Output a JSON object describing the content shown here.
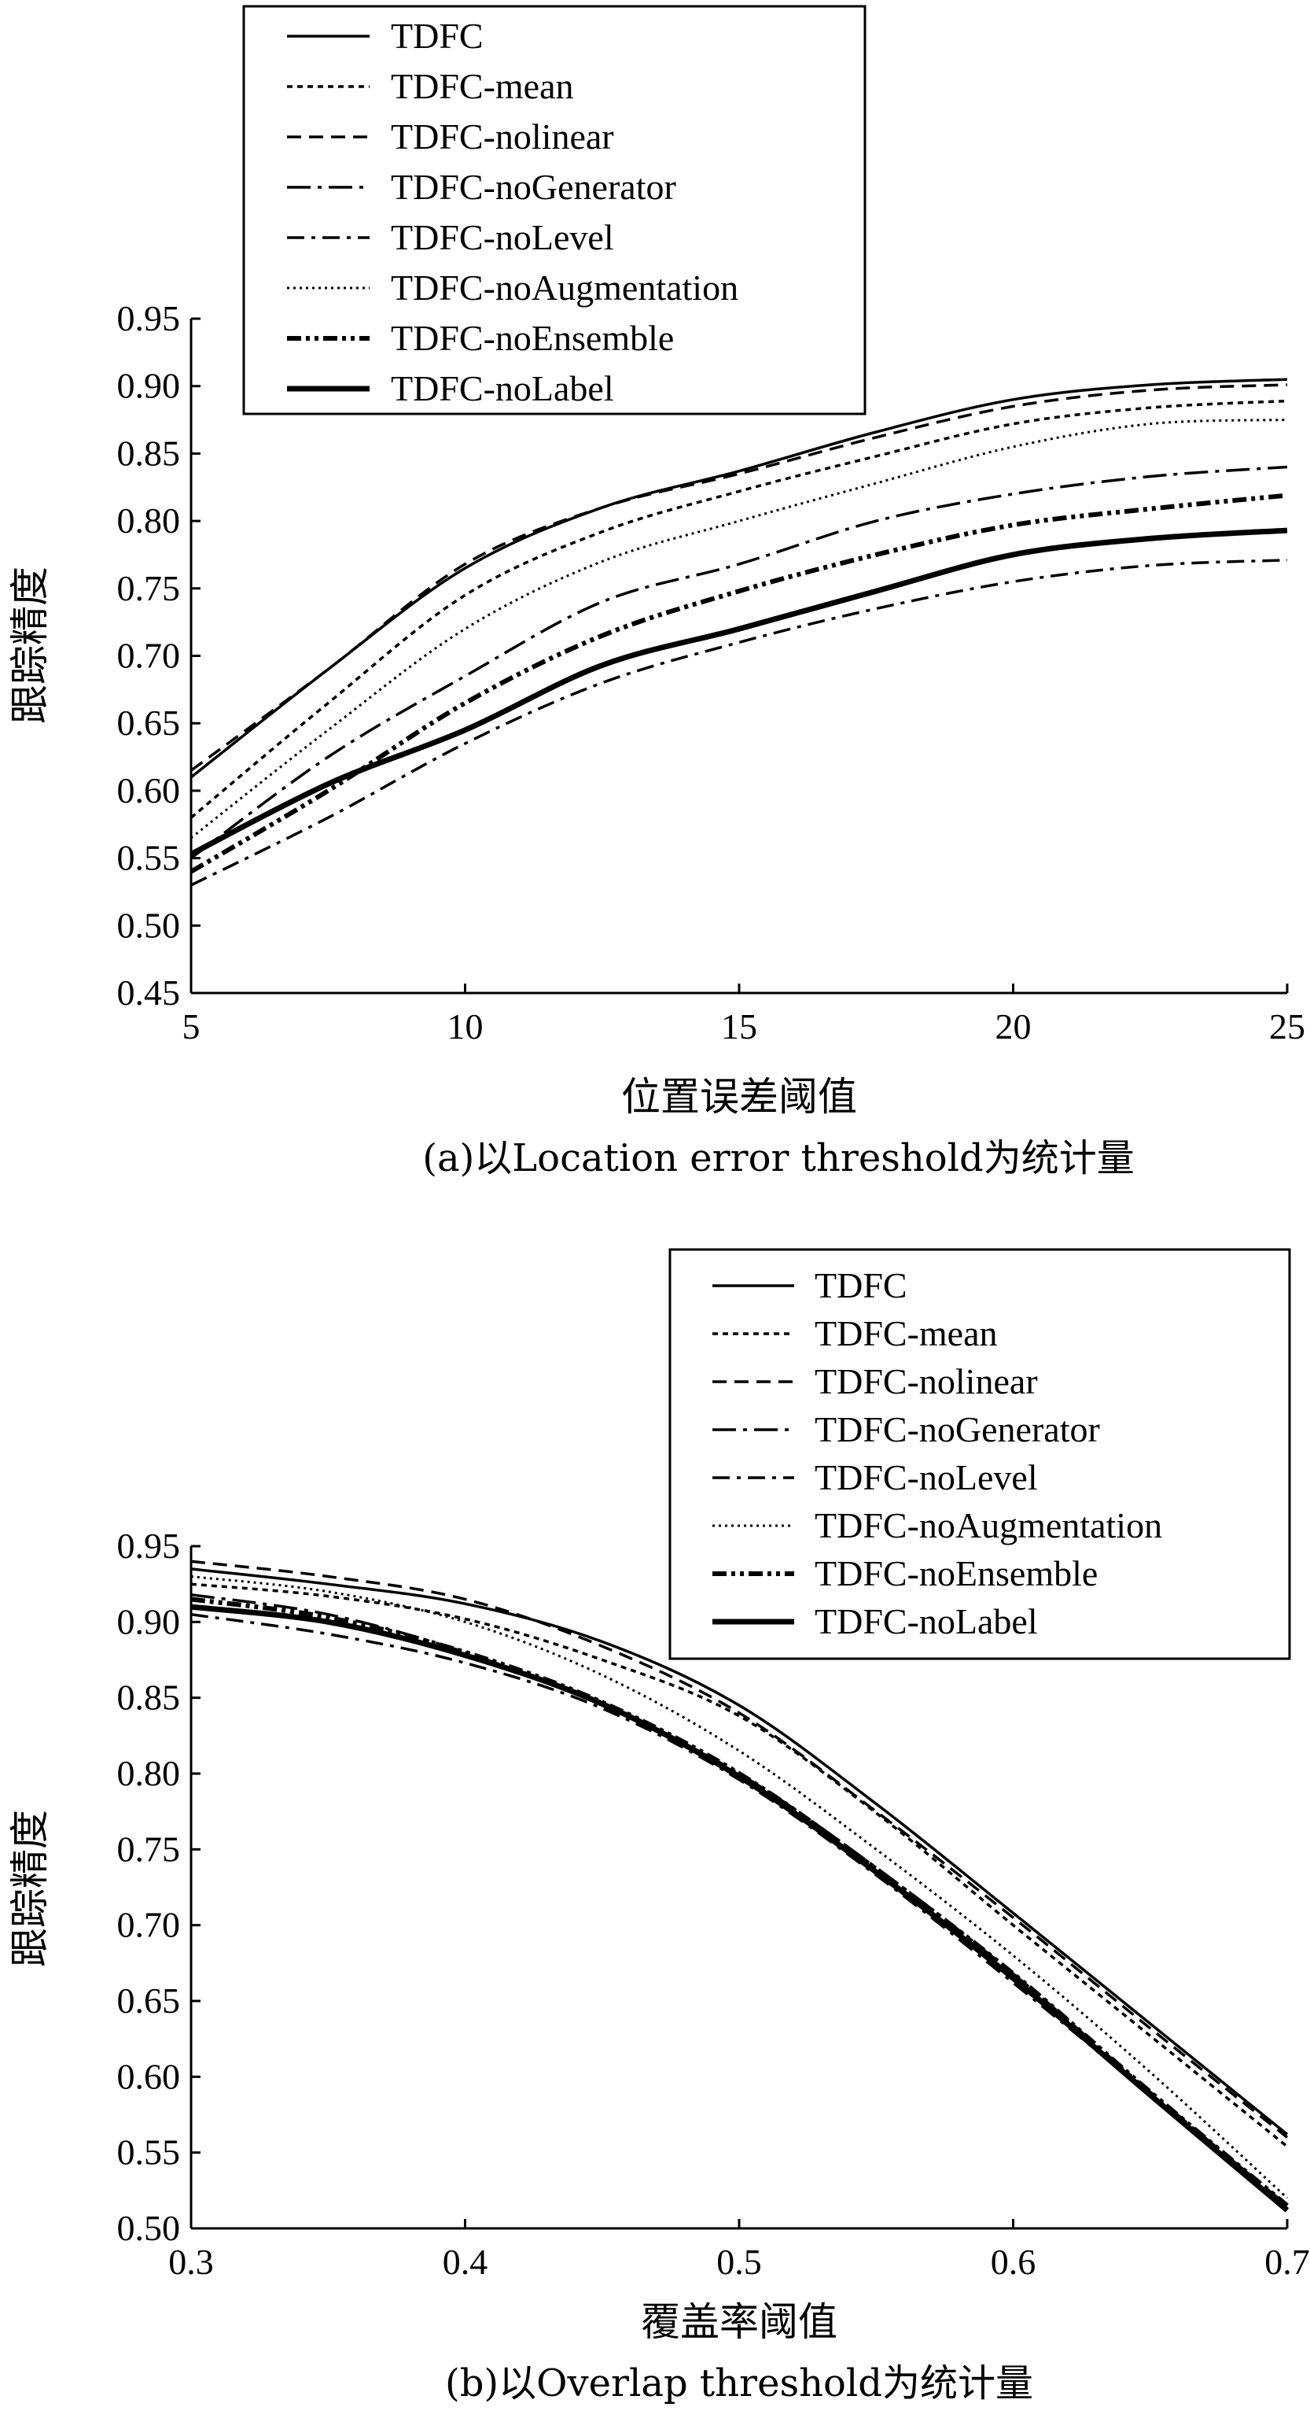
{
  "chart_data": [
    {
      "type": "line",
      "xlabel": "位置误差阈值",
      "ylabel": "跟踪精度",
      "caption": "(a)以Location error threshold为统计量",
      "xlim": [
        5,
        25
      ],
      "ylim": [
        0.45,
        0.95
      ],
      "xticks": [
        "5",
        "10",
        "15",
        "20",
        "25"
      ],
      "yticks": [
        "0.45",
        "0.50",
        "0.55",
        "0.60",
        "0.65",
        "0.70",
        "0.75",
        "0.80",
        "0.85",
        "0.90",
        "0.95"
      ],
      "legend_position": "top-left",
      "x": [
        5,
        7.5,
        10,
        12.5,
        15,
        17.5,
        20,
        22.5,
        25
      ],
      "series": [
        {
          "name": "TDFC",
          "style": "solid",
          "values": [
            0.61,
            0.69,
            0.765,
            0.81,
            0.837,
            0.866,
            0.89,
            0.901,
            0.905
          ]
        },
        {
          "name": "TDFC-mean",
          "style": "short-dash",
          "values": [
            0.58,
            0.665,
            0.745,
            0.792,
            0.822,
            0.848,
            0.872,
            0.884,
            0.889
          ]
        },
        {
          "name": "TDFC-nolinear",
          "style": "dash",
          "values": [
            0.615,
            0.69,
            0.768,
            0.81,
            0.835,
            0.862,
            0.885,
            0.897,
            0.901
          ]
        },
        {
          "name": "TDFC-noGenerator",
          "style": "dash-dot",
          "values": [
            0.55,
            0.625,
            0.685,
            0.74,
            0.768,
            0.8,
            0.82,
            0.833,
            0.84
          ]
        },
        {
          "name": "TDFC-noLevel",
          "style": "long-dash-dot",
          "values": [
            0.53,
            0.58,
            0.635,
            0.68,
            0.71,
            0.735,
            0.755,
            0.767,
            0.771
          ]
        },
        {
          "name": "TDFC-noAugmentation",
          "style": "dotted",
          "values": [
            0.565,
            0.645,
            0.72,
            0.77,
            0.8,
            0.828,
            0.855,
            0.872,
            0.875
          ]
        },
        {
          "name": "TDFC-noEnsemble",
          "style": "dash-dot-dot",
          "values": [
            0.54,
            0.6,
            0.665,
            0.715,
            0.748,
            0.775,
            0.797,
            0.809,
            0.819
          ]
        },
        {
          "name": "TDFC-noLabel",
          "style": "thick-solid",
          "values": [
            0.553,
            0.605,
            0.645,
            0.693,
            0.72,
            0.748,
            0.775,
            0.787,
            0.793
          ]
        }
      ]
    },
    {
      "type": "line",
      "xlabel": "覆盖率阈值",
      "ylabel": "跟踪精度",
      "caption": "(b)以Overlap threshold为统计量",
      "xlim": [
        0.3,
        0.7
      ],
      "ylim": [
        0.5,
        0.95
      ],
      "xticks": [
        "0.3",
        "0.4",
        "0.5",
        "0.6",
        "0.7"
      ],
      "yticks": [
        "0.50",
        "0.55",
        "0.60",
        "0.65",
        "0.70",
        "0.75",
        "0.80",
        "0.85",
        "0.90",
        "0.95"
      ],
      "legend_position": "top-right",
      "x": [
        0.3,
        0.35,
        0.4,
        0.45,
        0.5,
        0.55,
        0.6,
        0.65,
        0.7
      ],
      "series": [
        {
          "name": "TDFC",
          "style": "solid",
          "values": [
            0.935,
            0.925,
            0.912,
            0.887,
            0.845,
            0.78,
            0.708,
            0.635,
            0.562
          ]
        },
        {
          "name": "TDFC-mean",
          "style": "short-dash",
          "values": [
            0.925,
            0.917,
            0.902,
            0.875,
            0.838,
            0.774,
            0.7,
            0.627,
            0.554
          ]
        },
        {
          "name": "TDFC-nolinear",
          "style": "dash",
          "values": [
            0.94,
            0.93,
            0.915,
            0.884,
            0.84,
            0.775,
            0.705,
            0.632,
            0.56
          ]
        },
        {
          "name": "TDFC-noGenerator",
          "style": "dash-dot",
          "values": [
            0.918,
            0.905,
            0.88,
            0.845,
            0.8,
            0.738,
            0.668,
            0.59,
            0.515
          ]
        },
        {
          "name": "TDFC-noLevel",
          "style": "long-dash-dot",
          "values": [
            0.905,
            0.892,
            0.873,
            0.843,
            0.796,
            0.733,
            0.662,
            0.588,
            0.512
          ]
        },
        {
          "name": "TDFC-noAugmentation",
          "style": "dotted",
          "values": [
            0.93,
            0.92,
            0.9,
            0.865,
            0.815,
            0.75,
            0.68,
            0.603,
            0.52
          ]
        },
        {
          "name": "TDFC-noEnsemble",
          "style": "dash-dot-dot",
          "values": [
            0.915,
            0.903,
            0.88,
            0.847,
            0.8,
            0.737,
            0.668,
            0.59,
            0.515
          ]
        },
        {
          "name": "TDFC-noLabel",
          "style": "thick-solid",
          "values": [
            0.91,
            0.9,
            0.878,
            0.846,
            0.798,
            0.735,
            0.665,
            0.588,
            0.512
          ]
        }
      ]
    }
  ]
}
